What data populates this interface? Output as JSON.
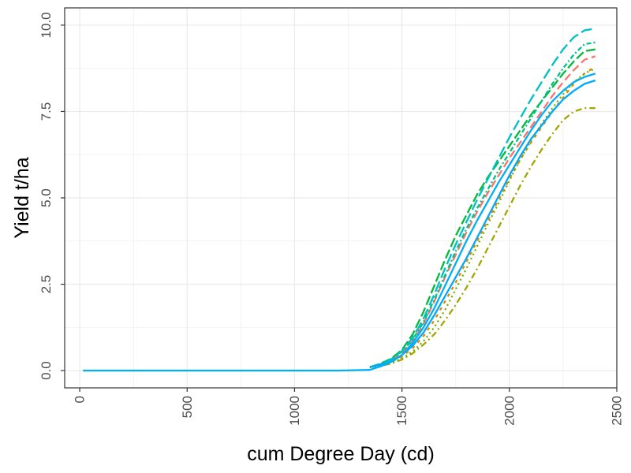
{
  "chart_data": {
    "type": "line",
    "title": "",
    "xlabel": "cum Degree Day (cd)",
    "ylabel": "Yield t/ha",
    "xlim": [
      -70,
      2500
    ],
    "ylim": [
      -0.5,
      10.5
    ],
    "x_ticks": [
      0,
      500,
      1000,
      1500,
      2000,
      2500
    ],
    "x_tick_labels": [
      "0",
      "500",
      "1000",
      "1500",
      "2000",
      "2500"
    ],
    "y_ticks": [
      0,
      2.5,
      5,
      7.5,
      10
    ],
    "y_tick_labels": [
      "0.0",
      "2.5",
      "5.0",
      "7.5",
      "10.0"
    ],
    "grid": true,
    "legend": "none",
    "series": [
      {
        "color": "#F8766D",
        "dash": "10,5",
        "x": [
          1350,
          1400,
          1450,
          1500,
          1550,
          1600,
          1650,
          1700,
          1750,
          1800,
          1850,
          1900,
          1950,
          2000,
          2050,
          2100,
          2150,
          2200,
          2250,
          2300,
          2350,
          2400
        ],
        "y": [
          0.1,
          0.18,
          0.3,
          0.5,
          0.85,
          1.35,
          2.0,
          2.7,
          3.35,
          4.0,
          4.6,
          5.15,
          5.65,
          6.15,
          6.6,
          7.05,
          7.5,
          7.95,
          8.35,
          8.7,
          9.0,
          9.1
        ]
      },
      {
        "color": "#E58700",
        "dash": "4,6",
        "x": [
          1350,
          1400,
          1450,
          1500,
          1550,
          1600,
          1650,
          1700,
          1750,
          1800,
          1850,
          1900,
          1950,
          2000,
          2050,
          2100,
          2150,
          2200,
          2250,
          2300,
          2350,
          2400
        ],
        "y": [
          0.1,
          0.16,
          0.25,
          0.4,
          0.65,
          1.0,
          1.45,
          2.0,
          2.55,
          3.15,
          3.75,
          4.35,
          4.95,
          5.55,
          6.1,
          6.6,
          7.05,
          7.5,
          7.9,
          8.3,
          8.6,
          8.8
        ]
      },
      {
        "color": "#A3A500",
        "dash": "8,4,2,4",
        "x": [
          1350,
          1400,
          1450,
          1500,
          1550,
          1600,
          1650,
          1700,
          1750,
          1800,
          1850,
          1900,
          1950,
          2000,
          2050,
          2100,
          2150,
          2200,
          2250,
          2300,
          2350,
          2400
        ],
        "y": [
          0.1,
          0.14,
          0.2,
          0.32,
          0.5,
          0.75,
          1.05,
          1.45,
          1.9,
          2.4,
          2.95,
          3.55,
          4.15,
          4.75,
          5.35,
          5.9,
          6.4,
          6.85,
          7.25,
          7.5,
          7.6,
          7.6
        ]
      },
      {
        "color": "#6BB100",
        "dash": "2,4",
        "x": [
          1350,
          1400,
          1450,
          1500,
          1550,
          1600,
          1650,
          1700,
          1750,
          1800,
          1850,
          1900,
          1950,
          2000,
          2050,
          2100,
          2150,
          2200,
          2250,
          2300,
          2350,
          2400
        ],
        "y": [
          0.1,
          0.15,
          0.22,
          0.35,
          0.55,
          0.85,
          1.25,
          1.75,
          2.35,
          2.95,
          3.6,
          4.25,
          4.85,
          5.5,
          6.1,
          6.65,
          7.15,
          7.6,
          8.0,
          8.35,
          8.6,
          8.75
        ]
      },
      {
        "color": "#00BA38",
        "dash": "12,4",
        "x": [
          1350,
          1400,
          1450,
          1500,
          1550,
          1600,
          1650,
          1700,
          1750,
          1800,
          1850,
          1900,
          1950,
          2000,
          2050,
          2100,
          2150,
          2200,
          2250,
          2300,
          2350,
          2400
        ],
        "y": [
          0.1,
          0.2,
          0.35,
          0.6,
          1.05,
          1.7,
          2.45,
          3.2,
          3.9,
          4.5,
          5.1,
          5.6,
          6.05,
          6.5,
          6.95,
          7.4,
          7.8,
          8.2,
          8.6,
          8.95,
          9.25,
          9.3
        ]
      },
      {
        "color": "#00C08B",
        "dash": "6,3,2,3",
        "x": [
          1350,
          1400,
          1450,
          1500,
          1550,
          1600,
          1650,
          1700,
          1750,
          1800,
          1850,
          1900,
          1950,
          2000,
          2050,
          2100,
          2150,
          2200,
          2250,
          2300,
          2350,
          2400
        ],
        "y": [
          0.1,
          0.18,
          0.32,
          0.55,
          0.9,
          1.4,
          2.05,
          2.75,
          3.45,
          4.1,
          4.7,
          5.25,
          5.8,
          6.3,
          6.8,
          7.3,
          7.8,
          8.3,
          8.75,
          9.15,
          9.45,
          9.5
        ]
      },
      {
        "color": "#00BFC4",
        "dash": "14,5",
        "x": [
          1350,
          1400,
          1450,
          1500,
          1550,
          1600,
          1650,
          1700,
          1750,
          1800,
          1850,
          1900,
          1950,
          2000,
          2050,
          2100,
          2150,
          2200,
          2250,
          2300,
          2350,
          2400
        ],
        "y": [
          0.1,
          0.19,
          0.33,
          0.57,
          0.95,
          1.5,
          2.2,
          2.95,
          3.65,
          4.3,
          4.95,
          5.55,
          6.15,
          6.75,
          7.3,
          7.85,
          8.35,
          8.85,
          9.3,
          9.65,
          9.85,
          9.9
        ]
      },
      {
        "color": "#00A9FF",
        "dash": "",
        "x": [
          1350,
          1400,
          1450,
          1500,
          1550,
          1600,
          1650,
          1700,
          1750,
          1800,
          1850,
          1900,
          1950,
          2000,
          2050,
          2100,
          2150,
          2200,
          2250,
          2300,
          2350,
          2400
        ],
        "y": [
          0.1,
          0.17,
          0.27,
          0.45,
          0.72,
          1.1,
          1.6,
          2.15,
          2.7,
          3.25,
          3.85,
          4.45,
          5.05,
          5.65,
          6.2,
          6.7,
          7.1,
          7.5,
          7.85,
          8.1,
          8.3,
          8.4
        ]
      },
      {
        "color": "#00B0F6",
        "dash": "",
        "x": [
          15,
          400,
          800,
          1200,
          1350,
          1400,
          1450,
          1500,
          1550,
          1600,
          1650,
          1700,
          1750,
          1800,
          1850,
          1900,
          1950,
          2000,
          2050,
          2100,
          2150,
          2200,
          2250,
          2300,
          2350,
          2400
        ],
        "y": [
          0,
          0,
          0,
          0,
          0.02,
          0.12,
          0.25,
          0.45,
          0.8,
          1.25,
          1.8,
          2.45,
          3.1,
          3.75,
          4.35,
          4.9,
          5.45,
          5.95,
          6.45,
          6.95,
          7.4,
          7.8,
          8.1,
          8.35,
          8.5,
          8.6
        ]
      }
    ]
  }
}
